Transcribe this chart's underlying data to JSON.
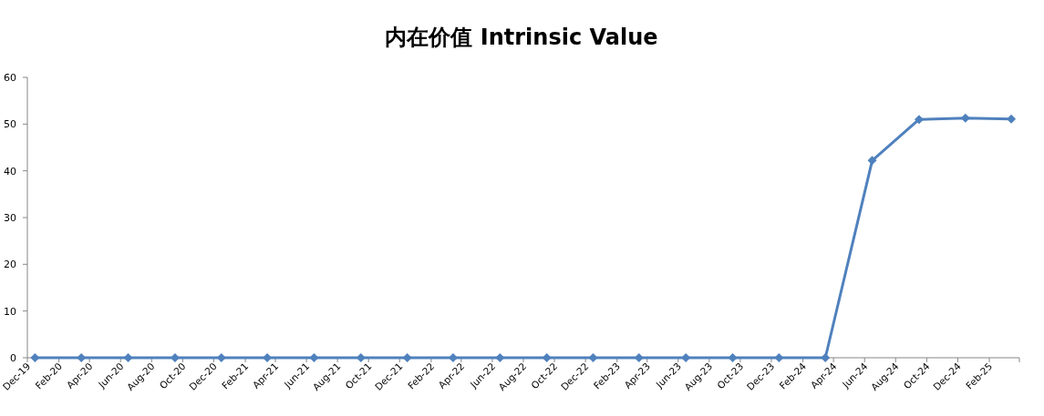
{
  "chart_data": {
    "type": "line",
    "title": "**内在价值 Intrinsic Value**",
    "x": [
      "2019-12-16",
      "2020-03-16",
      "2020-06-16",
      "2020-09-16",
      "2020-12-16",
      "2021-03-16",
      "2021-06-16",
      "2021-09-16",
      "2021-12-16",
      "2022-03-16",
      "2022-06-16",
      "2022-09-16",
      "2022-12-16",
      "2023-03-16",
      "2023-06-16",
      "2023-09-16",
      "2023-12-16",
      "2024-03-16",
      "2024-06-16",
      "2024-09-16",
      "2024-12-16",
      "2025-03-16"
    ],
    "values": [
      0,
      0,
      0,
      0,
      0,
      0,
      0,
      0,
      0,
      0,
      0,
      0,
      0,
      0,
      0,
      0,
      0,
      0,
      42.2,
      51.0,
      51.3,
      51.1
    ],
    "color": "#4f81bd",
    "marker": "diamond",
    "line_style": "solid",
    "grid": false,
    "legend": false,
    "xlim": [
      "2019-12",
      "2025-04"
    ],
    "xticks": [
      {
        "value": "2019-12",
        "label": "Dec-19"
      },
      {
        "value": "2020-02",
        "label": "Feb-20"
      },
      {
        "value": "2020-04",
        "label": "Apr-20"
      },
      {
        "value": "2020-06",
        "label": "Jun-20"
      },
      {
        "value": "2020-08",
        "label": "Aug-20"
      },
      {
        "value": "2020-10",
        "label": "Oct-20"
      },
      {
        "value": "2020-12",
        "label": "Dec-20"
      },
      {
        "value": "2021-02",
        "label": "Feb-21"
      },
      {
        "value": "2021-04",
        "label": "Apr-21"
      },
      {
        "value": "2021-06",
        "label": "Jun-21"
      },
      {
        "value": "2021-08",
        "label": "Aug-21"
      },
      {
        "value": "2021-10",
        "label": "Oct-21"
      },
      {
        "value": "2021-12",
        "label": "Dec-21"
      },
      {
        "value": "2022-02",
        "label": "Feb-22"
      },
      {
        "value": "2022-04",
        "label": "Apr-22"
      },
      {
        "value": "2022-06",
        "label": "Jun-22"
      },
      {
        "value": "2022-08",
        "label": "Aug-22"
      },
      {
        "value": "2022-10",
        "label": "Oct-22"
      },
      {
        "value": "2022-12",
        "label": "Dec-22"
      },
      {
        "value": "2023-02",
        "label": "Feb-23"
      },
      {
        "value": "2023-04",
        "label": "Apr-23"
      },
      {
        "value": "2023-06",
        "label": "Jun-23"
      },
      {
        "value": "2023-08",
        "label": "Aug-23"
      },
      {
        "value": "2023-10",
        "label": "Oct-23"
      },
      {
        "value": "2023-12",
        "label": "Dec-23"
      },
      {
        "value": "2024-02",
        "label": "Feb-24"
      },
      {
        "value": "2024-04",
        "label": "Apr-24"
      },
      {
        "value": "2024-06",
        "label": "Jun-24"
      },
      {
        "value": "2024-08",
        "label": "Aug-24"
      },
      {
        "value": "2024-10",
        "label": "Oct-24"
      },
      {
        "value": "2024-12",
        "label": "Dec-24"
      },
      {
        "value": "2025-02",
        "label": "Feb-25"
      }
    ],
    "ylim": [
      0,
      60
    ],
    "yticks": [
      0,
      10,
      20,
      30,
      40,
      50,
      60
    ]
  }
}
